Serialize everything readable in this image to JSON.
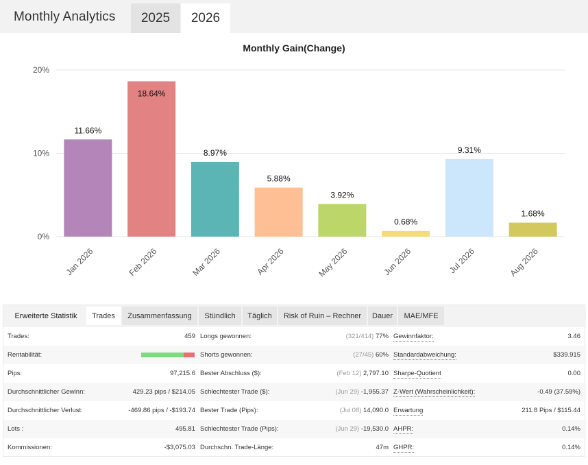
{
  "header": {
    "title": "Monthly Analytics",
    "tabs": [
      {
        "label": "2025",
        "active": false
      },
      {
        "label": "2026",
        "active": true
      }
    ]
  },
  "chart_data": {
    "type": "bar",
    "title": "Monthly Gain(Change)",
    "categories": [
      "Jan 2026",
      "Feb 2026",
      "Mar 2026",
      "Apr 2026",
      "May 2026",
      "Jun 2026",
      "Jul 2026",
      "Aug 2026"
    ],
    "values": [
      11.66,
      18.64,
      8.97,
      5.88,
      3.92,
      0.68,
      9.31,
      1.68
    ],
    "data_labels": [
      "11.66%",
      "18.64%",
      "8.97%",
      "5.88%",
      "3.92%",
      "0.68%",
      "9.31%",
      "1.68%"
    ],
    "colors": [
      "#b385b8",
      "#e38282",
      "#5bb5b5",
      "#ffbf94",
      "#bcd66a",
      "#f5dc7a",
      "#cce6fb",
      "#d2c95e"
    ],
    "yticks": [
      0,
      10,
      20
    ],
    "ytick_labels": [
      "0%",
      "10%",
      "20%"
    ],
    "ylim": [
      0,
      20
    ],
    "grid": true,
    "legend": "none",
    "xlabel": "",
    "ylabel": ""
  },
  "stats": {
    "tabs": [
      "Erweiterte Statistik",
      "Trades",
      "Zusammenfassung",
      "Stündlich",
      "Täglich",
      "Risk of Ruin – Rechner",
      "Dauer",
      "MAE/MFE"
    ],
    "active_tab": "Trades",
    "col1": [
      {
        "label": "Trades:",
        "value": "459"
      },
      {
        "label": "Rentabilität:",
        "value": ""
      },
      {
        "label": "Pips:",
        "value": "97,215.6"
      },
      {
        "label": "Durchschnittlicher Gewinn:",
        "value": "429.23 pips / $214.05"
      },
      {
        "label": "Durchschnittlicher Verlust:",
        "value": "-469.86 pips / -$193.74"
      },
      {
        "label": "Lots :",
        "value": "495.81"
      },
      {
        "label": "Kommissionen:",
        "value": "-$3,075.03"
      }
    ],
    "profitability": {
      "win_fraction": 0.79,
      "win_color": "#7fd97f",
      "loss_color": "#e87070"
    },
    "col2": [
      {
        "label": "Longs gewonnen:",
        "note": "(321/414)",
        "value": "77%"
      },
      {
        "label": "Shorts gewonnen:",
        "note": "(27/45)",
        "value": "60%"
      },
      {
        "label": "Bester Abschluss ($):",
        "note": "(Feb 12)",
        "value": "2,797.10"
      },
      {
        "label": "Schlechtester Trade ($):",
        "note": "(Jun 29)",
        "value": "-1,955.37"
      },
      {
        "label": "Bester Trade (Pips):",
        "note": "(Jul 08)",
        "value": "14,090.0"
      },
      {
        "label": "Schlechtester Trade (Pips):",
        "note": "(Jun 29)",
        "value": "-19,530.0"
      },
      {
        "label": "Durchschn. Trade-Länge:",
        "note": "",
        "value": "47m"
      }
    ],
    "col3": [
      {
        "label": "Gewinnfaktor:",
        "value": "3.46"
      },
      {
        "label": "Standardabweichung:",
        "value": "$339.915"
      },
      {
        "label": "Sharpe-Quotient",
        "value": "0.00"
      },
      {
        "label": "Z-Wert (Wahrscheinlichkeit):",
        "value": "-0.49 (37.59%)"
      },
      {
        "label": "Erwartung",
        "value": "211.8 Pips / $115.44"
      },
      {
        "label": "AHPR:",
        "value": "0.14%"
      },
      {
        "label": "GHPR:",
        "value": "0.14%"
      }
    ]
  }
}
